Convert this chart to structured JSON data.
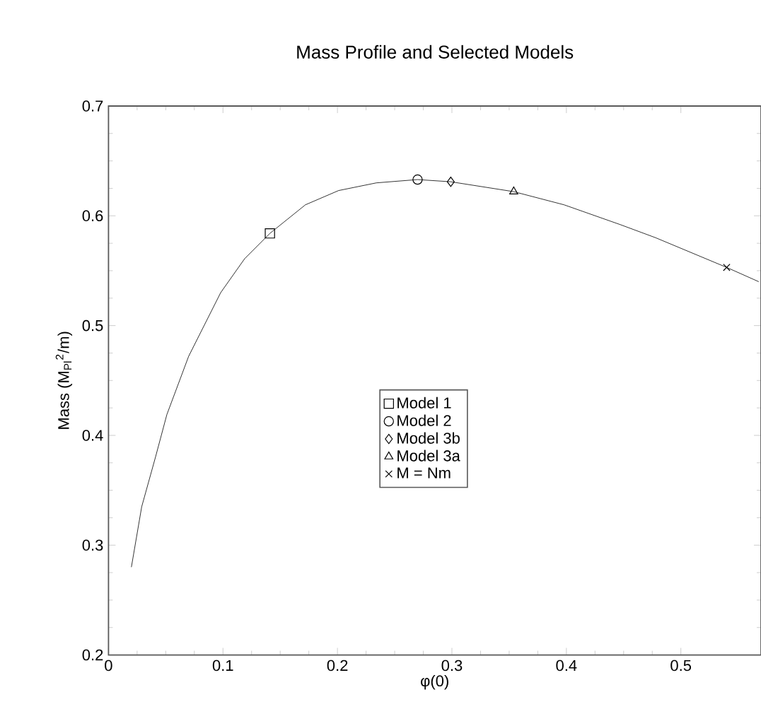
{
  "chart_data": {
    "type": "line",
    "title": "Mass Profile and Selected Models",
    "xlabel": "φ(0)",
    "ylabel": "Mass (M$_{Pl}$$^{2}$/m)",
    "xlim": [
      0,
      0.57
    ],
    "ylim": [
      0.2,
      0.7
    ],
    "xticks": [
      0,
      0.1,
      0.2,
      0.3,
      0.4,
      0.5
    ],
    "yticks": [
      0.2,
      0.3,
      0.4,
      0.5,
      0.6,
      0.7
    ],
    "grid": false,
    "legend": "center",
    "series": [
      {
        "color": "#000000",
        "marker": "none",
        "x": [
          0.02,
          0.029,
          0.041,
          0.051,
          0.07,
          0.098,
          0.119,
          0.141,
          0.172,
          0.201,
          0.234,
          0.27,
          0.299,
          0.354,
          0.398,
          0.447,
          0.478,
          0.54,
          0.568
        ],
        "values": [
          0.28,
          0.335,
          0.38,
          0.419,
          0.472,
          0.53,
          0.561,
          0.584,
          0.61,
          0.623,
          0.63,
          0.633,
          0.631,
          0.622,
          0.61,
          0.592,
          0.58,
          0.553,
          0.54
        ]
      },
      {
        "type": "scatter",
        "name": "Model 1",
        "color": "#000000",
        "marker": "square",
        "x": [
          0.141
        ],
        "values": [
          0.584
        ]
      },
      {
        "type": "scatter",
        "name": "Model 2",
        "color": "#000000",
        "marker": "circle",
        "x": [
          0.27
        ],
        "values": [
          0.633
        ]
      },
      {
        "type": "scatter",
        "name": "Model 3b",
        "color": "#000000",
        "marker": "diamond",
        "x": [
          0.299
        ],
        "values": [
          0.631
        ]
      },
      {
        "type": "scatter",
        "name": "Model 3a",
        "color": "#000000",
        "marker": "triangle",
        "x": [
          0.354
        ],
        "values": [
          0.622
        ]
      },
      {
        "type": "scatter",
        "name": "M = Nm",
        "color": "#000000",
        "marker": "cross",
        "x": [
          0.54
        ],
        "values": [
          0.553
        ]
      }
    ]
  }
}
